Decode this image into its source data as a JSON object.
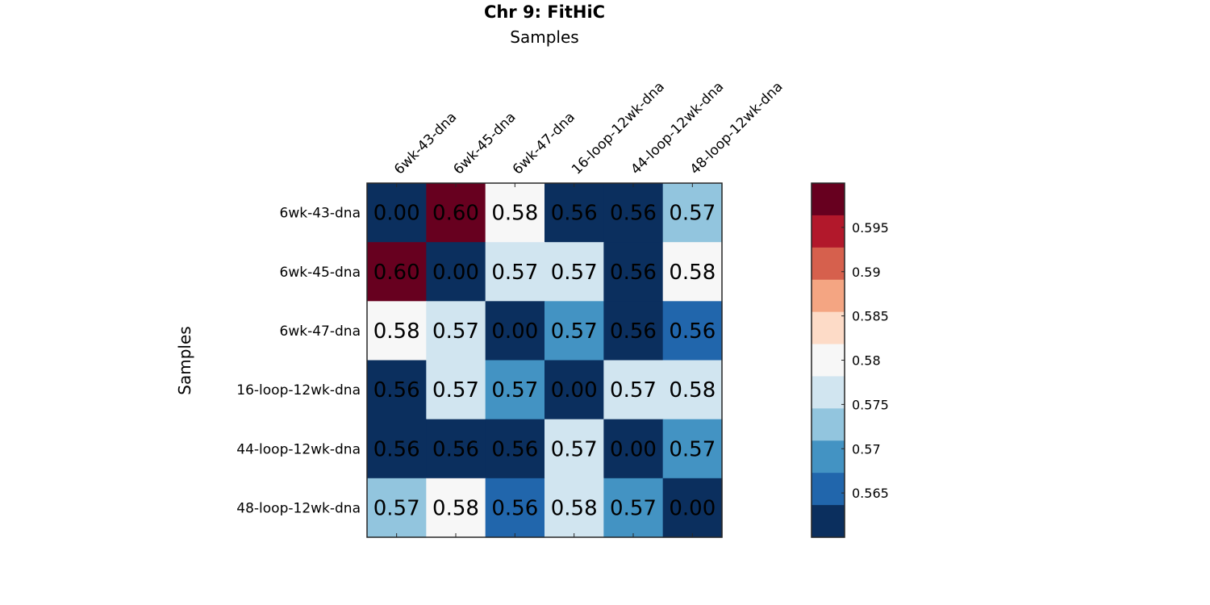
{
  "chart_data": {
    "type": "heatmap",
    "title": "Chr 9: FitHiC",
    "xlabel": "Samples",
    "ylabel": "Samples",
    "x_categories": [
      "6wk-43-dna",
      "6wk-45-dna",
      "6wk-47-dna",
      "16-loop-12wk-dna",
      "44-loop-12wk-dna",
      "48-loop-12wk-dna"
    ],
    "y_categories": [
      "6wk-43-dna",
      "6wk-45-dna",
      "6wk-47-dna",
      "16-loop-12wk-dna",
      "44-loop-12wk-dna",
      "48-loop-12wk-dna"
    ],
    "values": [
      [
        0.0,
        0.6,
        0.58,
        0.56,
        0.56,
        0.57
      ],
      [
        0.6,
        0.0,
        0.57,
        0.57,
        0.56,
        0.58
      ],
      [
        0.58,
        0.57,
        0.0,
        0.57,
        0.56,
        0.56
      ],
      [
        0.56,
        0.57,
        0.57,
        0.0,
        0.57,
        0.58
      ],
      [
        0.56,
        0.56,
        0.56,
        0.57,
        0.0,
        0.57
      ],
      [
        0.57,
        0.58,
        0.56,
        0.58,
        0.57,
        0.0
      ]
    ],
    "cell_labels": [
      [
        "0.00",
        "0.60",
        "0.58",
        "0.56",
        "0.56",
        "0.57"
      ],
      [
        "0.60",
        "0.00",
        "0.57",
        "0.57",
        "0.56",
        "0.58"
      ],
      [
        "0.58",
        "0.57",
        "0.00",
        "0.57",
        "0.56",
        "0.56"
      ],
      [
        "0.56",
        "0.57",
        "0.57",
        "0.00",
        "0.57",
        "0.58"
      ],
      [
        "0.56",
        "0.56",
        "0.56",
        "0.57",
        "0.00",
        "0.57"
      ],
      [
        "0.57",
        "0.58",
        "0.56",
        "0.58",
        "0.57",
        "0.00"
      ]
    ],
    "cell_colors": [
      [
        "#0b2f5e",
        "#67001f",
        "#f7f7f7",
        "#0b2f5e",
        "#0b2f5e",
        "#92c5de"
      ],
      [
        "#67001f",
        "#0b2f5e",
        "#d1e5f0",
        "#d1e5f0",
        "#0b2f5e",
        "#f7f7f7"
      ],
      [
        "#f7f7f7",
        "#d1e5f0",
        "#0b2f5e",
        "#4393c3",
        "#0b2f5e",
        "#2166ac"
      ],
      [
        "#0b2f5e",
        "#d1e5f0",
        "#4393c3",
        "#0b2f5e",
        "#d1e5f0",
        "#d1e5f0"
      ],
      [
        "#0b2f5e",
        "#0b2f5e",
        "#0b2f5e",
        "#d1e5f0",
        "#0b2f5e",
        "#4393c3"
      ],
      [
        "#92c5de",
        "#f7f7f7",
        "#2166ac",
        "#d1e5f0",
        "#4393c3",
        "#0b2f5e"
      ]
    ],
    "colorbar": {
      "range": [
        0.56,
        0.6
      ],
      "colors_top_to_bottom": [
        "#67001f",
        "#b2182b",
        "#d6604d",
        "#f4a582",
        "#fddbc7",
        "#f7f7f7",
        "#d1e5f0",
        "#92c5de",
        "#4393c3",
        "#2166ac",
        "#0b2f5e"
      ],
      "ticks": [
        0.565,
        0.57,
        0.575,
        0.58,
        0.585,
        0.59,
        0.595
      ],
      "tick_labels": [
        "0.565",
        "0.57",
        "0.575",
        "0.58",
        "0.585",
        "0.59",
        "0.595"
      ]
    },
    "grid": false,
    "legend": "colorbar right"
  }
}
